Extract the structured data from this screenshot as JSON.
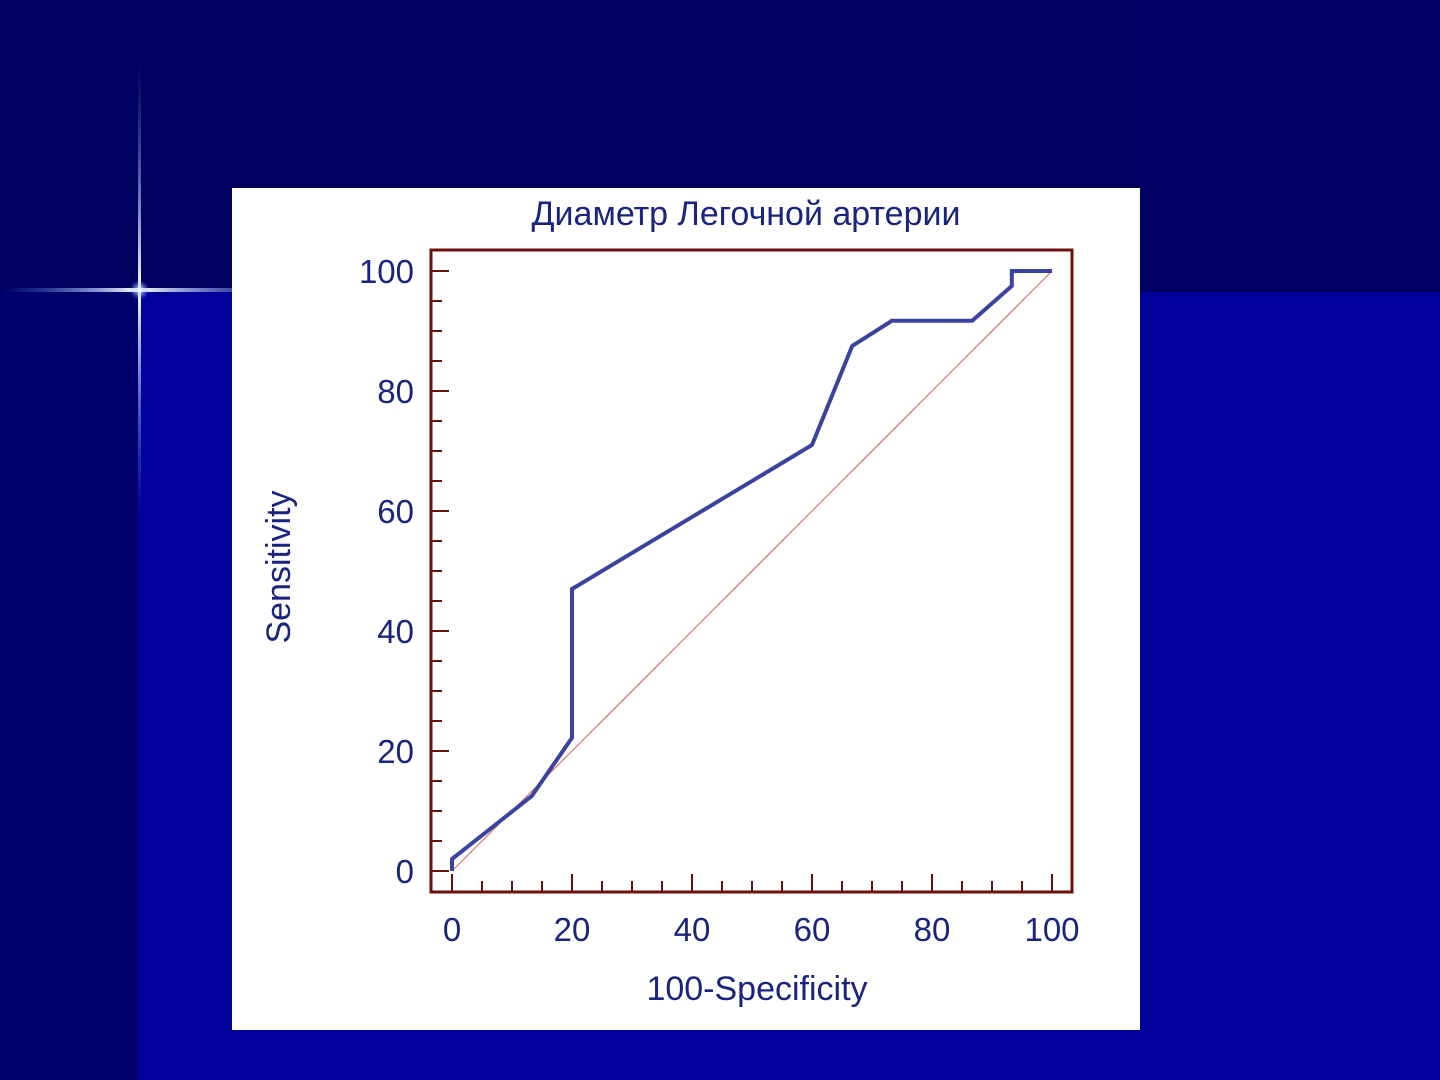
{
  "colors": {
    "slide_bg": "#00005e",
    "panel_bg": "#ffffff",
    "frame": "#6b0f0f",
    "roc_line": "#3a43a0",
    "diagonal": "#d47a6a",
    "text": "#1a237e"
  },
  "chart_data": {
    "type": "line",
    "title": "Диаметр Легочной артерии",
    "xlabel": "100-Specificity",
    "ylabel": "Sensitivity",
    "xlim": [
      0,
      100
    ],
    "ylim": [
      0,
      100
    ],
    "x_ticks": [
      "0",
      "20",
      "40",
      "60",
      "80",
      "100"
    ],
    "y_ticks": [
      "0",
      "20",
      "40",
      "60",
      "80",
      "100"
    ],
    "grid": false,
    "series": [
      {
        "points": [
          [
            0,
            0
          ],
          [
            0,
            2
          ],
          [
            13.3,
            12.5
          ],
          [
            20,
            22.2
          ],
          [
            20,
            47
          ],
          [
            60,
            71
          ],
          [
            66.7,
            87.5
          ],
          [
            73.3,
            91.7
          ],
          [
            86.7,
            91.7
          ],
          [
            93.3,
            97.5
          ],
          [
            93.3,
            100
          ],
          [
            100,
            100
          ]
        ]
      },
      {
        "points": [
          [
            0,
            0
          ],
          [
            100,
            100
          ]
        ],
        "style": "reference-diagonal"
      }
    ]
  }
}
